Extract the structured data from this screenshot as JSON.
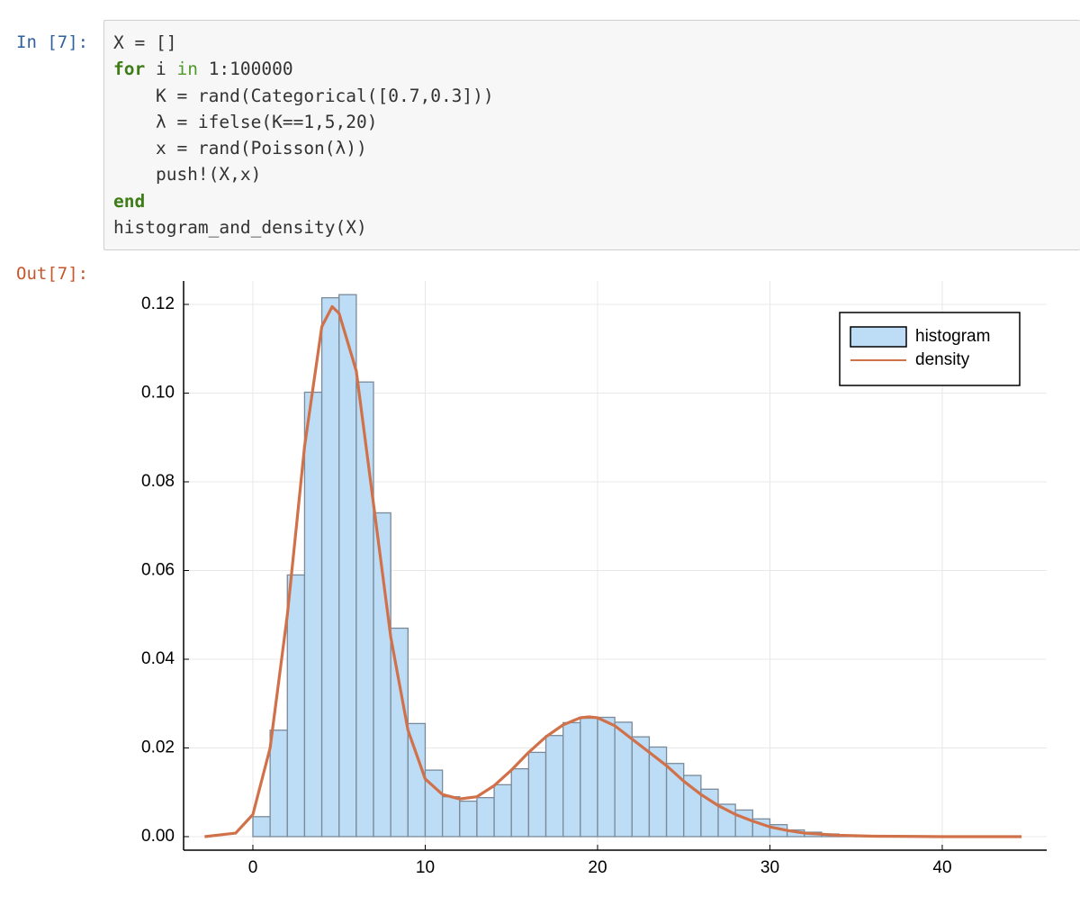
{
  "cell": {
    "input_prompt": "In [7]:",
    "code": [
      [
        {
          "text": "X = []"
        }
      ],
      [
        {
          "text": "for",
          "style": "keyword"
        },
        {
          "text": " i "
        },
        {
          "text": "in",
          "style": "operator"
        },
        {
          "text": " 1:100000"
        }
      ],
      [
        {
          "text": "    K = rand(Categorical([0.7,0.3]))"
        }
      ],
      [
        {
          "text": "    λ = ifelse(K==1,5,20)"
        }
      ],
      [
        {
          "text": "    x = rand(Poisson(λ))"
        }
      ],
      [
        {
          "text": "    push!(X,x)"
        }
      ],
      [
        {
          "text": "end",
          "style": "keyword"
        }
      ],
      [
        {
          "text": "histogram_and_density(X)"
        }
      ]
    ],
    "output_prompt": "Out[7]:"
  },
  "chart_data": {
    "type": "histogram",
    "bins": [
      0,
      1,
      2,
      3,
      4,
      5,
      6,
      7,
      8,
      9,
      10,
      11,
      12,
      13,
      14,
      15,
      16,
      17,
      18,
      19,
      20,
      21,
      22,
      23,
      24,
      25,
      26,
      27,
      28,
      29,
      30,
      31,
      32,
      33,
      34,
      35,
      36,
      37,
      38,
      39
    ],
    "series": [
      {
        "name": "histogram",
        "type": "histogram",
        "color": "#bddcf6",
        "edge_color": "#7a8a99",
        "values": [
          0.0045,
          0.024,
          0.059,
          0.1002,
          0.1215,
          0.1222,
          0.1025,
          0.073,
          0.047,
          0.0255,
          0.015,
          0.009,
          0.008,
          0.0088,
          0.0117,
          0.0153,
          0.019,
          0.0228,
          0.0257,
          0.0267,
          0.0269,
          0.0258,
          0.0225,
          0.0202,
          0.0165,
          0.0138,
          0.0107,
          0.0073,
          0.006,
          0.004,
          0.0027,
          0.0015,
          0.001,
          0.0006,
          0.0003,
          0.0002,
          0.0001,
          0.0001,
          0.0001
        ]
      },
      {
        "name": "density",
        "type": "line",
        "color": "#d0714a",
        "x": [
          -2.8,
          -1,
          0,
          1,
          2,
          3,
          4,
          4.6,
          5,
          6,
          7,
          8,
          9,
          10,
          11,
          12,
          13,
          14,
          15,
          16,
          17,
          18,
          19,
          19.5,
          20,
          21,
          22,
          23,
          24,
          25,
          26,
          27,
          28,
          29,
          30,
          31,
          32,
          34,
          36,
          40,
          44.6
        ],
        "values": [
          0,
          0.0008,
          0.005,
          0.02,
          0.05,
          0.088,
          0.115,
          0.1195,
          0.118,
          0.105,
          0.075,
          0.045,
          0.024,
          0.013,
          0.0095,
          0.0085,
          0.009,
          0.0115,
          0.015,
          0.019,
          0.0225,
          0.0252,
          0.0268,
          0.027,
          0.0268,
          0.025,
          0.022,
          0.019,
          0.016,
          0.0125,
          0.0095,
          0.007,
          0.005,
          0.0035,
          0.0022,
          0.0014,
          0.0008,
          0.0003,
          0.0001,
          0,
          0
        ]
      }
    ],
    "xlim": [
      -4.02,
      46.06
    ],
    "ylim": [
      -0.00305,
      0.12528
    ],
    "xticks": [
      0,
      10,
      20,
      30,
      40
    ],
    "yticks": [
      {
        "value": 0,
        "label": "0.00"
      },
      {
        "value": 0.02,
        "label": "0.02"
      },
      {
        "value": 0.04,
        "label": "0.04"
      },
      {
        "value": 0.06,
        "label": "0.06"
      },
      {
        "value": 0.08,
        "label": "0.08"
      },
      {
        "value": 0.1,
        "label": "0.10"
      },
      {
        "value": 0.12,
        "label": "0.12"
      }
    ],
    "grid": true,
    "legend": "top-right"
  }
}
